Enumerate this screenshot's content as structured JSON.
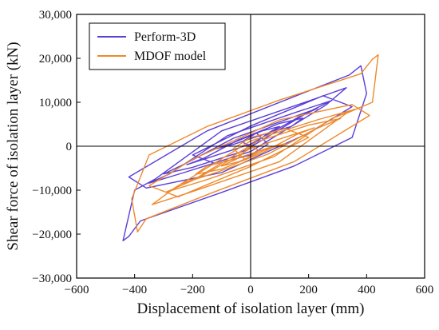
{
  "chart_data": {
    "type": "line",
    "title": "",
    "xlabel": "Displacement of isolation layer (mm)",
    "ylabel": "Shear force of isolation layer (kN)",
    "xlim": [
      -600,
      600
    ],
    "ylim": [
      -30000,
      30000
    ],
    "x_ticks": [
      -600,
      -400,
      -200,
      0,
      200,
      400,
      600
    ],
    "x_tick_labels": [
      "−600",
      "−400",
      "−200",
      "0",
      "200",
      "400",
      "600"
    ],
    "y_ticks": [
      30000,
      20000,
      10000,
      0,
      -10000,
      -20000,
      -30000
    ],
    "y_tick_labels": [
      "30,000",
      "20,000",
      "10,000",
      "0",
      "−10,000",
      "−20,000",
      "−30,000"
    ],
    "grid": false,
    "zero_lines": true,
    "legend": {
      "position": "top-left"
    },
    "series": [
      {
        "name": "Perform-3D",
        "color": "#5b3fd6",
        "x": [
          0,
          60,
          100,
          40,
          -60,
          -120,
          -60,
          40,
          140,
          180,
          100,
          -40,
          -160,
          -220,
          -140,
          0,
          170,
          230,
          120,
          -60,
          -220,
          -300,
          -200,
          -20,
          200,
          280,
          160,
          -80,
          -280,
          -350,
          -230,
          0,
          260,
          330,
          200,
          -100,
          -330,
          -400,
          -440,
          -420,
          -380,
          -100,
          150,
          350,
          400,
          380,
          340,
          120,
          -150,
          -420,
          -360,
          -100,
          200,
          350,
          250,
          0,
          -200,
          -120,
          0,
          60,
          20,
          -30,
          0
        ],
        "y": [
          0,
          3000,
          4500,
          3500,
          800,
          -600,
          400,
          2600,
          4500,
          6400,
          5200,
          1500,
          -2700,
          -4200,
          -2500,
          500,
          6800,
          8600,
          6000,
          1800,
          -3800,
          -6300,
          -4800,
          -1000,
          7800,
          10400,
          7800,
          2400,
          -6300,
          -8400,
          -6000,
          -1200,
          9400,
          13300,
          10300,
          3500,
          -7500,
          -10000,
          -21500,
          -20500,
          -17000,
          -10500,
          -4500,
          2000,
          12000,
          18300,
          16200,
          10500,
          3500,
          -7000,
          -9500,
          -6000,
          3000,
          9000,
          11500,
          4600,
          -2000,
          -4000,
          -2000,
          500,
          3000,
          1000,
          0
        ]
      },
      {
        "name": "MDOF model",
        "color": "#ee8a2c",
        "x": [
          0,
          -50,
          -100,
          -40,
          50,
          120,
          60,
          -40,
          -150,
          -190,
          -100,
          40,
          160,
          220,
          140,
          0,
          -170,
          -240,
          -120,
          60,
          220,
          310,
          200,
          20,
          -200,
          -290,
          -160,
          80,
          280,
          360,
          230,
          0,
          -260,
          -340,
          -200,
          100,
          330,
          420,
          440,
          420,
          380,
          100,
          -150,
          -350,
          -410,
          -390,
          -360,
          -130,
          150,
          410,
          350,
          100,
          -200,
          -350,
          -250,
          0,
          200,
          120,
          0,
          -60,
          -20,
          30,
          0
        ],
        "y": [
          0,
          -3000,
          -4500,
          -3500,
          -800,
          600,
          -400,
          -2600,
          -4500,
          -6400,
          -5200,
          -1500,
          2700,
          4200,
          2500,
          -500,
          -6800,
          -8600,
          -6000,
          -1800,
          3800,
          6300,
          4800,
          1000,
          -7800,
          -10400,
          -7800,
          -2400,
          6300,
          8400,
          6000,
          1200,
          -9400,
          -13300,
          -10300,
          -3500,
          7500,
          10000,
          20800,
          19800,
          16500,
          10500,
          4500,
          -2000,
          -12000,
          -19500,
          -16500,
          -10500,
          -3500,
          7000,
          9500,
          6000,
          -3000,
          -9000,
          -11500,
          -4600,
          2000,
          4000,
          2000,
          -500,
          -3000,
          -1000,
          0
        ]
      }
    ]
  }
}
